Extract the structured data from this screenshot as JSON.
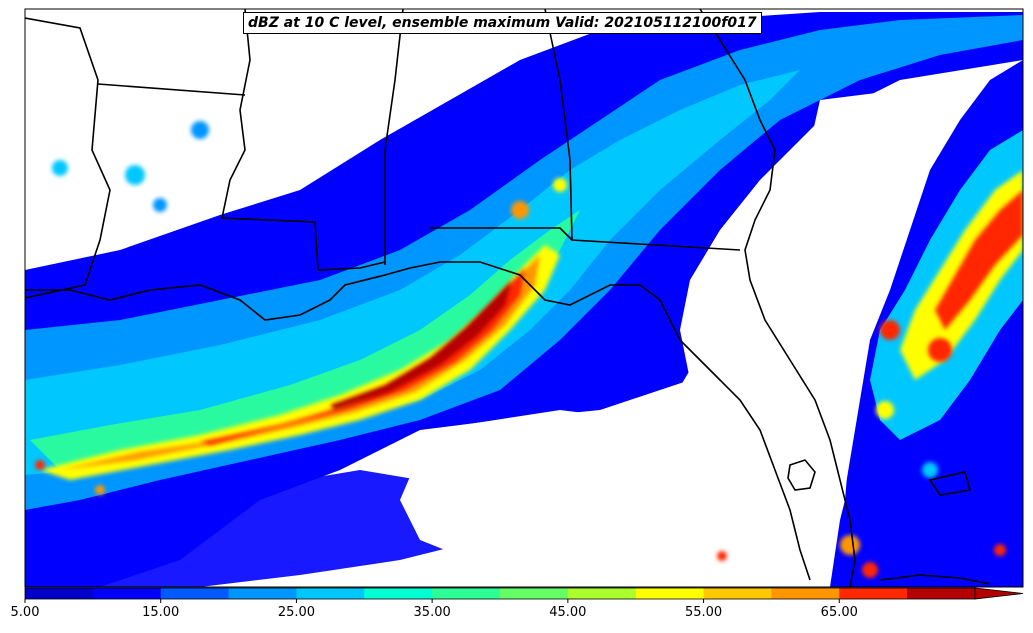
{
  "title": "dBZ at 10 C level, ensemble maximum Valid: 202105112100f017",
  "colorbar": {
    "levels": [
      5,
      10,
      15,
      20,
      25,
      30,
      35,
      40,
      45,
      50,
      55,
      60,
      65,
      70
    ],
    "colors": [
      "#0000c8",
      "#0000ff",
      "#005aff",
      "#0096ff",
      "#00c8ff",
      "#00ffd2",
      "#2dff96",
      "#64ff64",
      "#aaff2d",
      "#ffff00",
      "#ffc800",
      "#ff9600",
      "#ff2800",
      "#b40000"
    ],
    "extend": "max",
    "tick_labels": [
      "5.00",
      "15.00",
      "25.00",
      "35.00",
      "45.00",
      "55.00",
      "65.00"
    ]
  },
  "palette": {
    "background": "#ffffff",
    "boundary": "#000000"
  }
}
